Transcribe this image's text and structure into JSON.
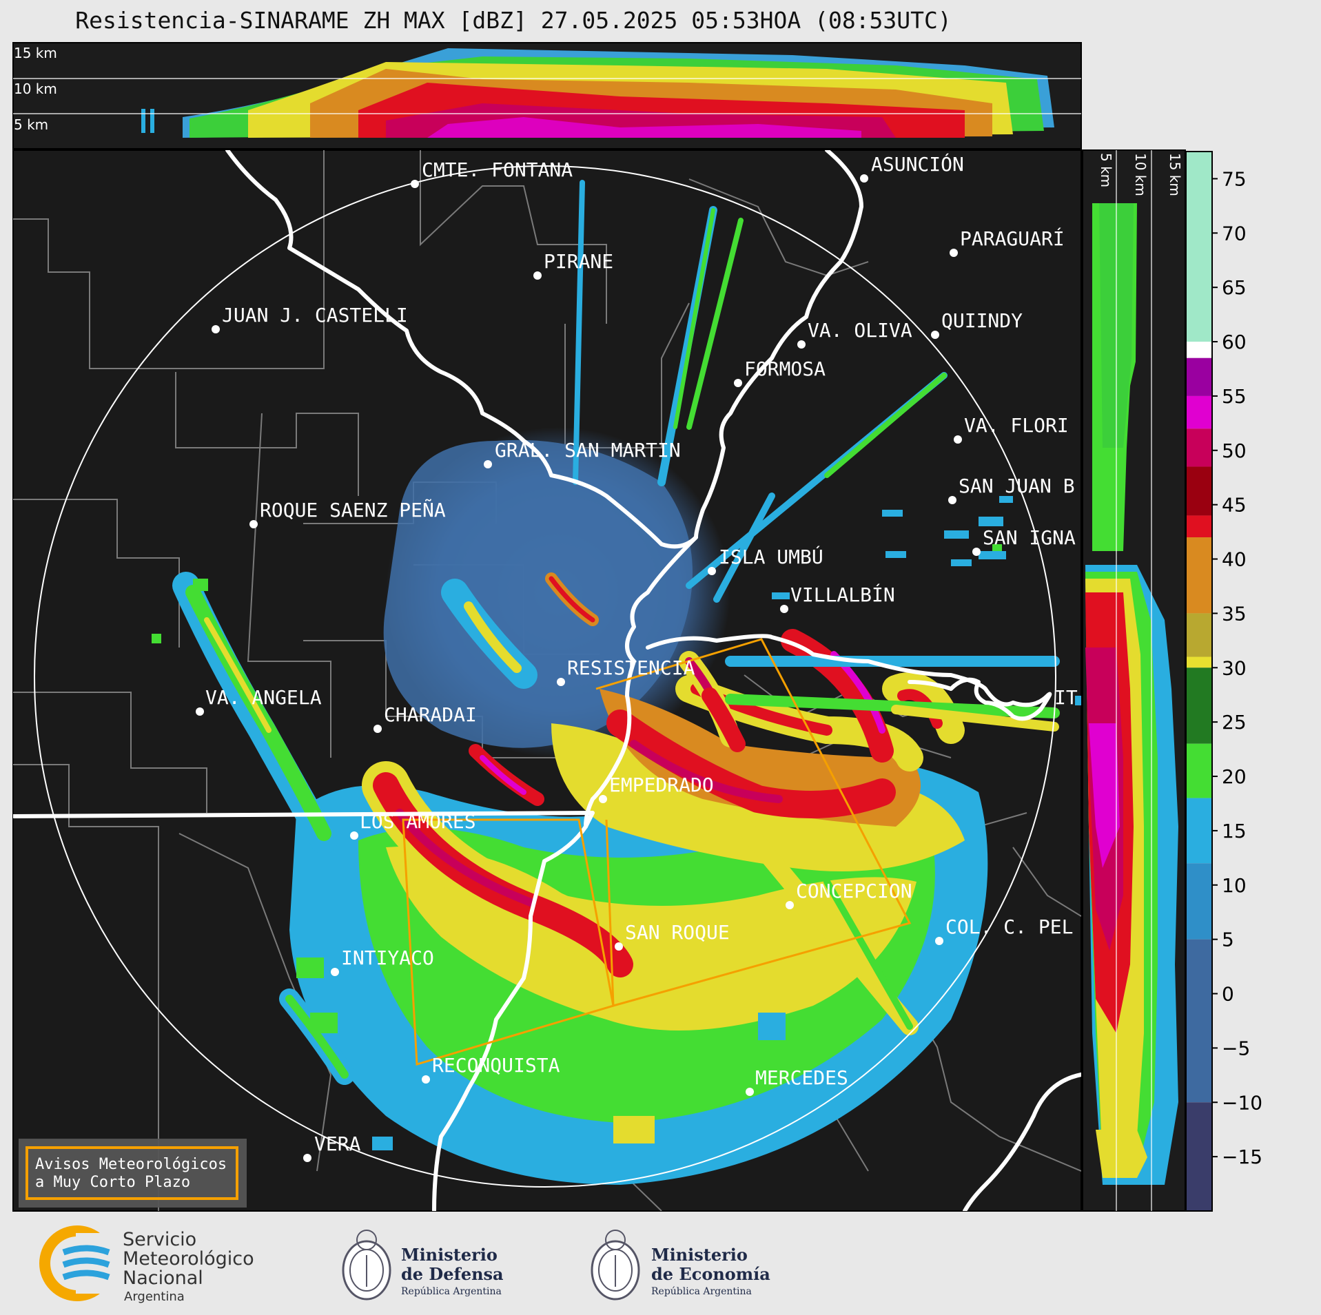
{
  "title": "Resistencia-SINARAME ZH MAX [dBZ] 27.05.2025 05:53HOA (08:53UTC)",
  "top_panel": {
    "height_labels": [
      "15 km",
      "10 km",
      "5 km"
    ]
  },
  "side_panel": {
    "height_labels": [
      "5 km",
      "10 km",
      "15 km"
    ]
  },
  "colorbar": {
    "ticks": [
      "75",
      "70",
      "65",
      "60",
      "55",
      "50",
      "45",
      "40",
      "35",
      "30",
      "25",
      "20",
      "15",
      "10",
      "5",
      "0",
      "−5",
      "−10",
      "−15"
    ],
    "colors": {
      "very_low": "#3a3d6a",
      "low": "#3e6aa0",
      "light": "#2f8fc8",
      "cyan": "#2aaee0",
      "green_light": "#44dd33",
      "green_dark": "#227a22",
      "yellow": "#e8e030",
      "olive": "#b8a830",
      "orange": "#d98a20",
      "red": "#e01020",
      "dark_red": "#9a0010",
      "crimson": "#c8005a",
      "magenta": "#e000d0",
      "purple": "#9a00a0",
      "white": "#ffffff",
      "mint": "#a0e8c8"
    }
  },
  "map": {
    "cities": [
      {
        "name": "CMTE. FONTANA"
      },
      {
        "name": "ASUNCIÓN"
      },
      {
        "name": "PIRANE"
      },
      {
        "name": "PARAGUARÍ"
      },
      {
        "name": "JUAN J. CASTELLI"
      },
      {
        "name": "QUIINDY"
      },
      {
        "name": "VA. OLIVA"
      },
      {
        "name": "FORMOSA"
      },
      {
        "name": "VA. FLORI"
      },
      {
        "name": "GRAL. SAN MARTIN"
      },
      {
        "name": "SAN JUAN B"
      },
      {
        "name": "ROQUE SAENZ PEÑA"
      },
      {
        "name": "SAN IGNA"
      },
      {
        "name": "ISLA UMBÚ"
      },
      {
        "name": "VILLALBÍN"
      },
      {
        "name": "RESISTENCIA"
      },
      {
        "name": "VA. ANGELA"
      },
      {
        "name": "CHARADAI"
      },
      {
        "name": "IT"
      },
      {
        "name": "EMPEDRADO"
      },
      {
        "name": "LOS AMORES"
      },
      {
        "name": "CONCEPCION"
      },
      {
        "name": "SAN ROQUE"
      },
      {
        "name": "COL. C. PEL"
      },
      {
        "name": "INTIYACO"
      },
      {
        "name": "RECONQUISTA"
      },
      {
        "name": "MERCEDES"
      },
      {
        "name": "VERA"
      }
    ],
    "warning_box": {
      "line1": "Avisos Meteorológicos",
      "line2": "a Muy Corto Plazo",
      "color": "#f5a000"
    }
  },
  "footer": {
    "smn": {
      "line1": "Servicio",
      "line2": "Meteorológico",
      "line3": "Nacional",
      "line4": "Argentina"
    },
    "defensa": {
      "line1": "Ministerio",
      "line2": "de Defensa",
      "line3": "República Argentina"
    },
    "economia": {
      "line1": "Ministerio",
      "line2": "de Economía",
      "line3": "República Argentina"
    }
  }
}
